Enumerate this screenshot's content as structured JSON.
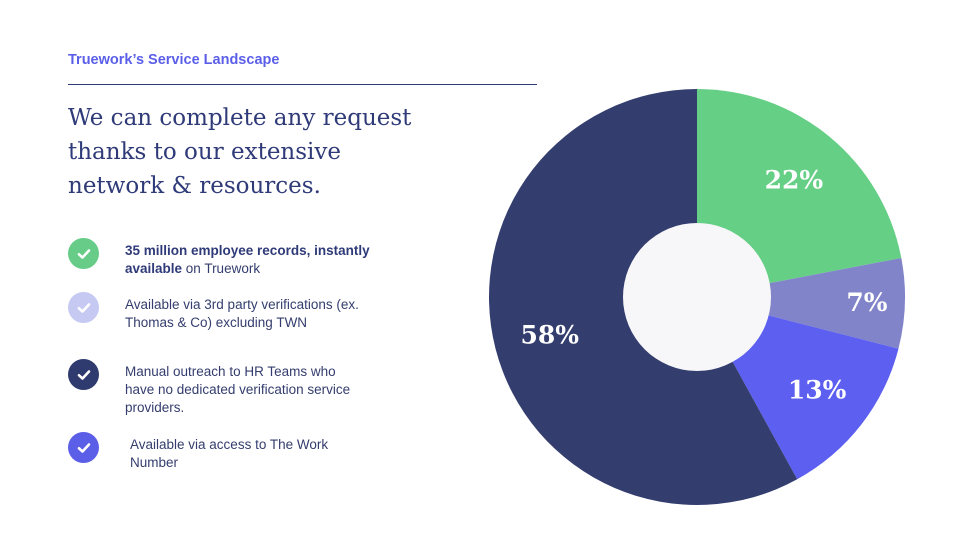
{
  "header": {
    "eyebrow": "Truework’s Service Landscape",
    "headline_lines": [
      "We can complete any request",
      "thanks to our extensive",
      "network & resources."
    ]
  },
  "legend": [
    {
      "bold": "35 million employee records, instantly available",
      "rest": " on Truework",
      "color": "#66cc88",
      "icon": "check-circle-icon"
    },
    {
      "bold": "",
      "rest": "Available via 3rd party verifications (ex. Thomas & Co) excluding TWN",
      "color": "#c6c9f2",
      "icon": "check-circle-icon"
    },
    {
      "bold": "",
      "rest": "Manual outreach to HR Teams who have no dedicated verification service providers.",
      "color": "#2f3a6e",
      "icon": "check-circle-icon"
    },
    {
      "bold": "",
      "rest": "Available via access to The Work Number",
      "color": "#5b5fe8",
      "icon": "check-circle-icon"
    }
  ],
  "chart_data": {
    "type": "pie",
    "donut": true,
    "slices": [
      {
        "label": "22%",
        "value": 22,
        "color": "#66cf86"
      },
      {
        "label": "7%",
        "value": 7,
        "color": "#8184c8"
      },
      {
        "label": "13%",
        "value": 13,
        "color": "#5c5ff0"
      },
      {
        "label": "58%",
        "value": 58,
        "color": "#333d6e"
      }
    ]
  }
}
